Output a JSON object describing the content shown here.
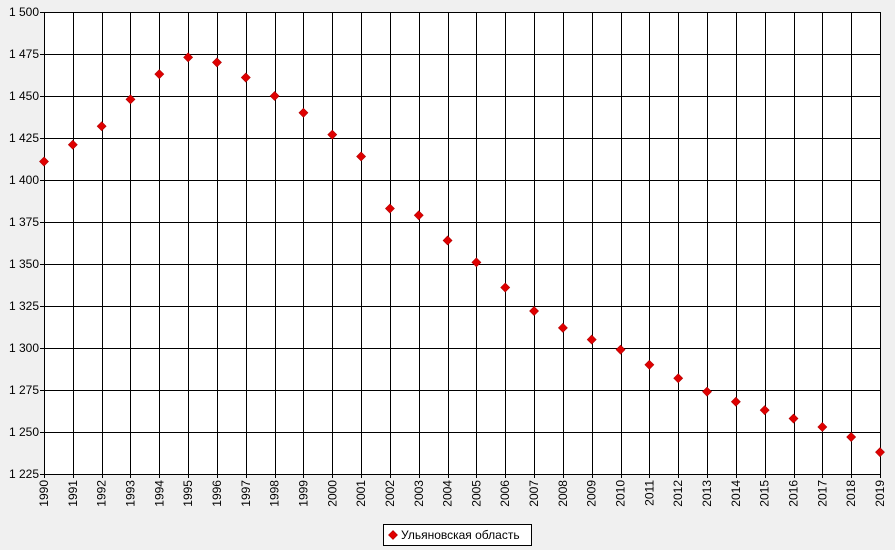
{
  "chart_data": {
    "type": "scatter",
    "title": "",
    "xlabel": "",
    "ylabel": "",
    "ylim": [
      1225,
      1500
    ],
    "yticks": [
      1225,
      1250,
      1275,
      1300,
      1325,
      1350,
      1375,
      1400,
      1425,
      1450,
      1475,
      1500
    ],
    "ytick_labels": [
      "1 225",
      "1 250",
      "1 275",
      "1 300",
      "1 325",
      "1 350",
      "1 375",
      "1 400",
      "1 425",
      "1 450",
      "1 475",
      "1 500"
    ],
    "x": [
      "1990",
      "1991",
      "1992",
      "1993",
      "1994",
      "1995",
      "1996",
      "1997",
      "1998",
      "1999",
      "2000",
      "2001",
      "2002",
      "2003",
      "2004",
      "2005",
      "2006",
      "2007",
      "2008",
      "2009",
      "2010",
      "2011",
      "2012",
      "2013",
      "2014",
      "2015",
      "2016",
      "2017",
      "2018",
      "2019"
    ],
    "series": [
      {
        "name": "Ульяновская область",
        "color": "#e00000",
        "marker": "diamond",
        "values": [
          1411,
          1421,
          1432,
          1448,
          1463,
          1473,
          1470,
          1461,
          1450,
          1440,
          1427,
          1414,
          1383,
          1379,
          1364,
          1351,
          1336,
          1322,
          1312,
          1305,
          1299,
          1290,
          1282,
          1274,
          1268,
          1263,
          1258,
          1253,
          1247,
          1238
        ]
      }
    ],
    "grid": true,
    "legend_position": "bottom-center",
    "colors": {
      "background": "#ffffff",
      "gridline": "#000000",
      "marker": "#e00000"
    }
  }
}
